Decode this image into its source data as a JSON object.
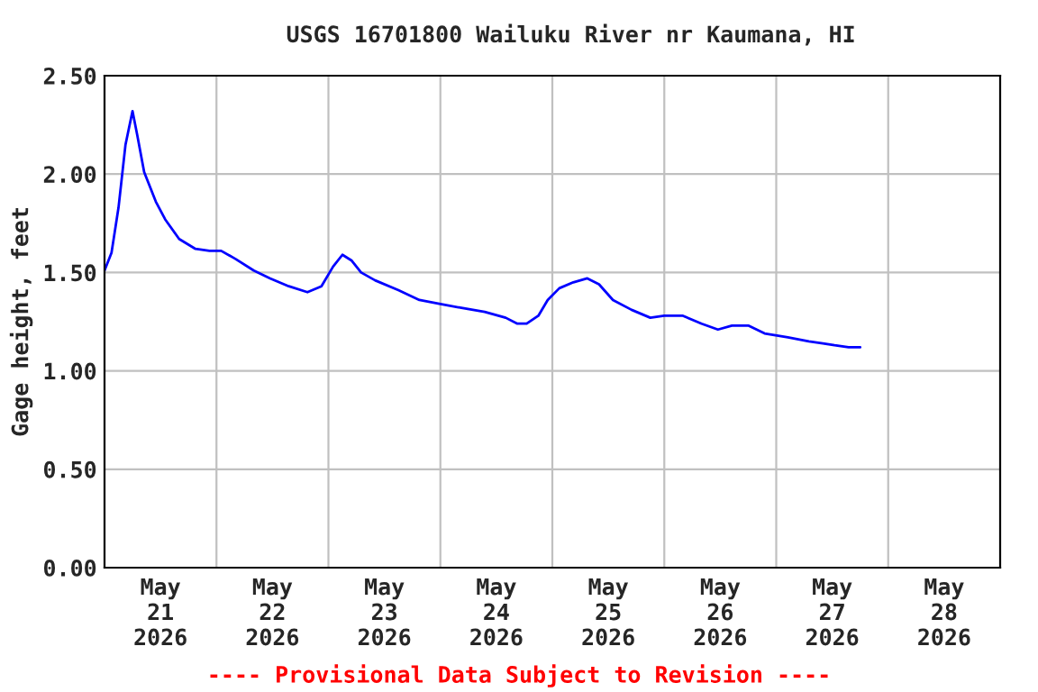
{
  "chart_data": {
    "type": "line",
    "title": "USGS 16701800 Wailuku River nr Kaumana, HI",
    "ylabel": "Gage height, feet",
    "annotations": [
      "---- Provisional Data Subject to Revision ----"
    ],
    "xlim": [
      "2026-05-21T00:00",
      "2026-05-29T00:00"
    ],
    "xticks": [
      {
        "value": "2026-05-21T12:00",
        "label": "May\n21\n2026"
      },
      {
        "value": "2026-05-22T00:00",
        "label": null
      },
      {
        "value": "2026-05-22T12:00",
        "label": "May\n22\n2026"
      },
      {
        "value": "2026-05-23T00:00",
        "label": null
      },
      {
        "value": "2026-05-23T12:00",
        "label": "May\n23\n2026"
      },
      {
        "value": "2026-05-24T00:00",
        "label": null
      },
      {
        "value": "2026-05-24T12:00",
        "label": "May\n24\n2026"
      },
      {
        "value": "2026-05-25T00:00",
        "label": null
      },
      {
        "value": "2026-05-25T12:00",
        "label": "May\n25\n2026"
      },
      {
        "value": "2026-05-26T00:00",
        "label": null
      },
      {
        "value": "2026-05-26T12:00",
        "label": "May\n26\n2026"
      },
      {
        "value": "2026-05-27T00:00",
        "label": null
      },
      {
        "value": "2026-05-27T12:00",
        "label": "May\n27\n2026"
      },
      {
        "value": "2026-05-28T00:00",
        "label": null
      },
      {
        "value": "2026-05-28T12:00",
        "label": "May\n28\n2026"
      }
    ],
    "ylim": [
      0,
      2.5
    ],
    "yticks": [
      {
        "value": 0,
        "label": "0.00"
      },
      {
        "value": 0.5,
        "label": "0.50"
      },
      {
        "value": 1.0,
        "label": "1.00"
      },
      {
        "value": 1.5,
        "label": "1.50"
      },
      {
        "value": 2.0,
        "label": "2.00"
      },
      {
        "value": 2.5,
        "label": "2.50"
      }
    ],
    "grid": true,
    "marker": "none",
    "line_style": "solid",
    "series": [
      {
        "color": "#0000ff",
        "x": [
          "2026-05-21T00:00",
          "2026-05-21T01:30",
          "2026-05-21T03:00",
          "2026-05-21T04:30",
          "2026-05-21T06:00",
          "2026-05-21T07:00",
          "2026-05-21T08:30",
          "2026-05-21T11:00",
          "2026-05-21T13:00",
          "2026-05-21T16:00",
          "2026-05-21T19:30",
          "2026-05-21T22:30",
          "2026-05-22T01:00",
          "2026-05-22T04:00",
          "2026-05-22T08:00",
          "2026-05-22T11:30",
          "2026-05-22T15:30",
          "2026-05-22T19:30",
          "2026-05-22T22:30",
          "2026-05-23T01:00",
          "2026-05-23T03:00",
          "2026-05-23T05:00",
          "2026-05-23T07:00",
          "2026-05-23T10:00",
          "2026-05-23T15:00",
          "2026-05-23T19:30",
          "2026-05-24T00:00",
          "2026-05-24T04:30",
          "2026-05-24T09:30",
          "2026-05-24T14:00",
          "2026-05-24T16:30",
          "2026-05-24T18:30",
          "2026-05-24T21:00",
          "2026-05-24T23:00",
          "2026-05-25T01:30",
          "2026-05-25T04:30",
          "2026-05-25T07:30",
          "2026-05-25T10:00",
          "2026-05-25T13:00",
          "2026-05-25T17:00",
          "2026-05-25T21:00",
          "2026-05-26T00:00",
          "2026-05-26T04:00",
          "2026-05-26T08:00",
          "2026-05-26T11:30",
          "2026-05-26T14:30",
          "2026-05-26T18:00",
          "2026-05-26T21:30",
          "2026-05-27T02:30",
          "2026-05-27T07:00",
          "2026-05-27T10:00",
          "2026-05-27T12:30",
          "2026-05-27T15:30",
          "2026-05-27T18:00"
        ],
        "values": [
          1.51,
          1.6,
          1.83,
          2.15,
          2.32,
          2.2,
          2.01,
          1.86,
          1.77,
          1.67,
          1.62,
          1.61,
          1.61,
          1.57,
          1.51,
          1.47,
          1.43,
          1.4,
          1.43,
          1.53,
          1.59,
          1.56,
          1.5,
          1.46,
          1.41,
          1.36,
          1.34,
          1.32,
          1.3,
          1.27,
          1.24,
          1.24,
          1.28,
          1.36,
          1.42,
          1.45,
          1.47,
          1.44,
          1.36,
          1.31,
          1.27,
          1.28,
          1.28,
          1.24,
          1.21,
          1.23,
          1.23,
          1.19,
          1.17,
          1.15,
          1.14,
          1.13,
          1.12,
          1.12
        ]
      }
    ]
  }
}
